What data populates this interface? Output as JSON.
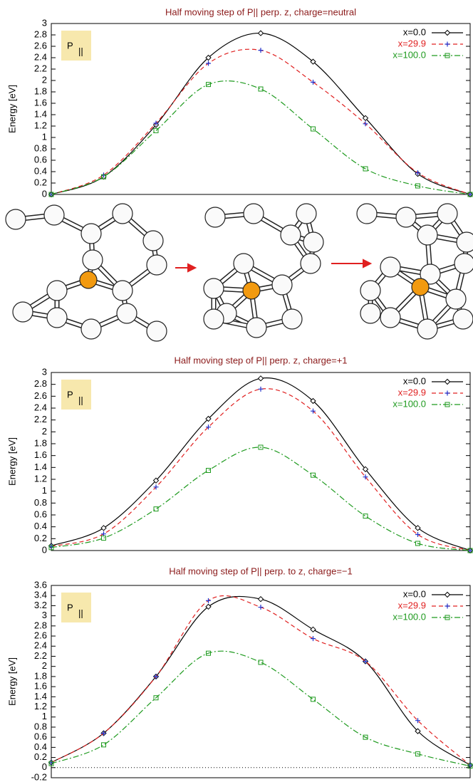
{
  "chart_data": [
    {
      "type": "line",
      "title": "Half moving step of P|| perp. z, charge=neutral",
      "y_label": "Energy [eV]",
      "annotation": "P",
      "annotation_sub": "||",
      "legend": "upper right",
      "grid": false,
      "categories": [
        null,
        null,
        null,
        null,
        null,
        null,
        null,
        null,
        null
      ],
      "ylim": [
        0,
        3
      ],
      "yticks": [
        0,
        0.2,
        0.4,
        0.6,
        0.8,
        1,
        1.2,
        1.4,
        1.6,
        1.8,
        2,
        2.2,
        2.4,
        2.6,
        2.8,
        3
      ],
      "series": [
        {
          "name": "x=0.0",
          "color": "#000000",
          "marker": "diamond",
          "line_style": "solid",
          "values": [
            0,
            0.31,
            1.22,
            2.4,
            2.83,
            2.33,
            1.34,
            0.36,
            0
          ]
        },
        {
          "name": "x=29.9",
          "color": "#e02020",
          "marker": "plus",
          "line_style": "dashed",
          "values": [
            0,
            0.34,
            1.25,
            2.3,
            2.53,
            1.97,
            1.24,
            0.38,
            0
          ]
        },
        {
          "name": "x=100.0",
          "color": "#1e9a1e",
          "marker": "square",
          "line_style": "dashdot",
          "values": [
            0,
            0.31,
            1.12,
            1.93,
            1.85,
            1.15,
            0.45,
            0.15,
            0
          ]
        }
      ]
    },
    {
      "type": "line",
      "title": "Half moving step of P|| perp. z, charge=+1",
      "y_label": "Energy [eV]",
      "annotation": "P",
      "annotation_sub": "||",
      "legend": "upper right",
      "grid": false,
      "categories": [
        null,
        null,
        null,
        null,
        null,
        null,
        null,
        null,
        null
      ],
      "ylim": [
        0,
        3
      ],
      "yticks": [
        0,
        0.2,
        0.4,
        0.6,
        0.8,
        1,
        1.2,
        1.4,
        1.6,
        1.8,
        2,
        2.2,
        2.4,
        2.6,
        2.8,
        3
      ],
      "series": [
        {
          "name": "x=0.0",
          "color": "#000000",
          "marker": "diamond",
          "line_style": "solid",
          "values": [
            0.08,
            0.38,
            1.18,
            2.22,
            2.9,
            2.52,
            1.37,
            0.38,
            0
          ]
        },
        {
          "name": "x=29.9",
          "color": "#e02020",
          "marker": "plus",
          "line_style": "dashed",
          "values": [
            0.07,
            0.28,
            1.07,
            2.08,
            2.72,
            2.35,
            1.24,
            0.27,
            0
          ]
        },
        {
          "name": "x=100.0",
          "color": "#1e9a1e",
          "marker": "square",
          "line_style": "dashdot",
          "values": [
            0.05,
            0.21,
            0.7,
            1.35,
            1.74,
            1.27,
            0.58,
            0.12,
            0
          ]
        }
      ]
    },
    {
      "type": "line",
      "title": "Half moving step of P|| perp. to z, charge=−1",
      "y_label": "Energy [eV]",
      "annotation": "P",
      "annotation_sub": "||",
      "legend": "upper right",
      "grid": false,
      "zero_line": true,
      "categories": [
        null,
        null,
        null,
        null,
        null,
        null,
        null,
        null,
        null
      ],
      "ylim": [
        -0.2,
        3.6
      ],
      "yticks": [
        -0.2,
        0,
        0.2,
        0.4,
        0.6,
        0.8,
        1,
        1.2,
        1.4,
        1.6,
        1.8,
        2,
        2.2,
        2.4,
        2.6,
        2.8,
        3,
        3.2,
        3.4,
        3.6
      ],
      "series": [
        {
          "name": "x=0.0",
          "color": "#000000",
          "marker": "diamond",
          "line_style": "solid",
          "values": [
            0.1,
            0.68,
            1.8,
            3.18,
            3.33,
            2.73,
            2.1,
            0.72,
            0.05
          ]
        },
        {
          "name": "x=29.9",
          "color": "#e02020",
          "marker": "plus",
          "line_style": "dashed",
          "values": [
            0.1,
            0.68,
            1.8,
            3.3,
            3.17,
            2.55,
            2.1,
            0.93,
            0.05
          ]
        },
        {
          "name": "x=100.0",
          "color": "#1e9a1e",
          "marker": "square",
          "line_style": "dashdot",
          "values": [
            0.08,
            0.45,
            1.38,
            2.26,
            2.08,
            1.35,
            0.6,
            0.27,
            0.03
          ]
        }
      ]
    }
  ]
}
